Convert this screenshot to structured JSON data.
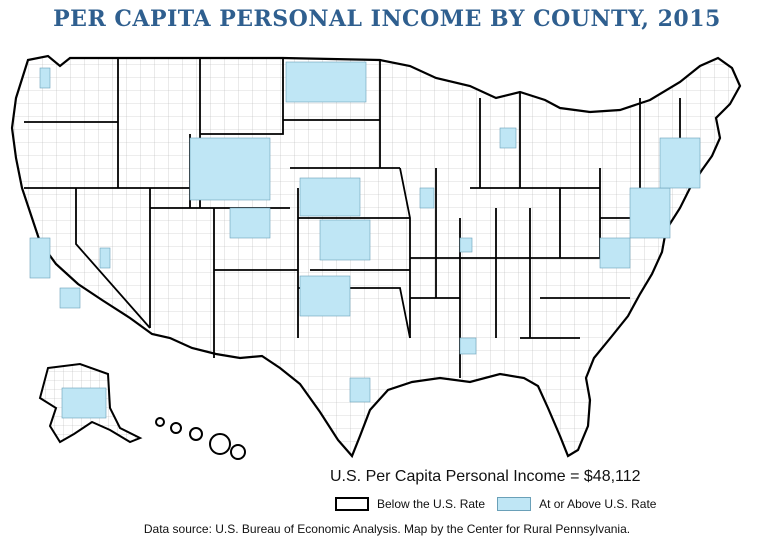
{
  "title": "Per Capita Personal Income by County, 2015",
  "national_income_text": "U.S. Per Capita Personal Income = $48,112",
  "legend": {
    "below_label": "Below the U.S. Rate",
    "above_label": "At or Above U.S. Rate",
    "below_color": "#ffffff",
    "above_color": "#bfe6f5",
    "border_color": "#000000"
  },
  "source_text": "Data source: U.S. Bureau of Economic Analysis. Map by the Center for Rural Pennsylvania.",
  "map": {
    "type": "choropleth",
    "geography": "United States counties",
    "categories": [
      "Below the U.S. Rate",
      "At or Above U.S. Rate"
    ]
  }
}
